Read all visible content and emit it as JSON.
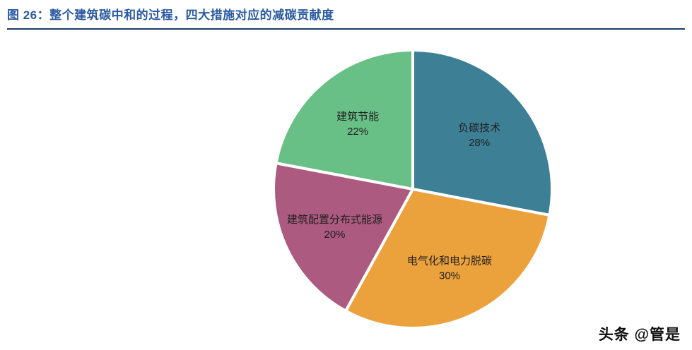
{
  "header": {
    "title": "图 26：整个建筑碳中和的过程，四大措施对应的减碳贡献度"
  },
  "watermark": "头条 @管是",
  "colors": {
    "title_text": "#2a5aa0",
    "title_rule": "#1d3a6e"
  },
  "chart_data": {
    "type": "pie",
    "title": "整个建筑碳中和的过程，四大措施对应的减碳贡献度",
    "start_angle_deg": 0,
    "direction": "clockwise",
    "label_position": "inside",
    "legend": "none",
    "slices": [
      {
        "label": "负碳技术",
        "value": 28,
        "percent_label": "28%",
        "color": "#3d8096"
      },
      {
        "label": "电气化和电力脱碳",
        "value": 30,
        "percent_label": "30%",
        "color": "#eca23c"
      },
      {
        "label": "建筑配置分布式能源",
        "value": 20,
        "percent_label": "20%",
        "color": "#ad5a80"
      },
      {
        "label": "建筑节能",
        "value": 22,
        "percent_label": "22%",
        "color": "#68c087"
      }
    ]
  }
}
